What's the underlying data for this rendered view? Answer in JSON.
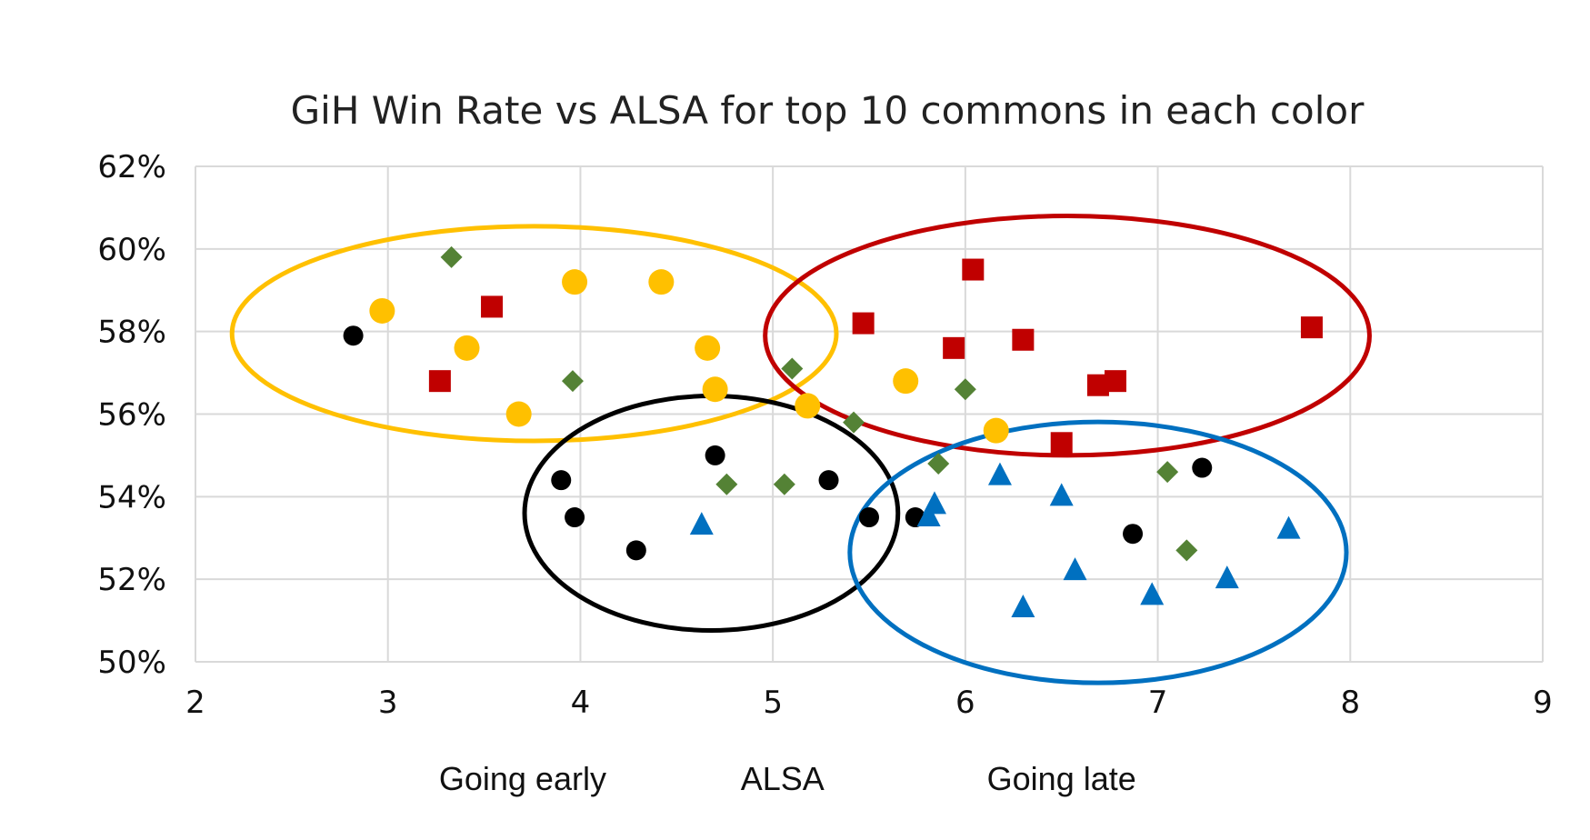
{
  "chart_data": {
    "type": "scatter",
    "title": "GiH Win Rate vs ALSA for top 10 commons in each color",
    "xlim": [
      2,
      9
    ],
    "ylim": [
      50,
      62
    ],
    "x_ticks": [
      2,
      3,
      4,
      5,
      6,
      7,
      8,
      9
    ],
    "y_ticks": [
      50,
      52,
      54,
      56,
      58,
      60,
      62
    ],
    "y_tick_labels": [
      "50%",
      "52%",
      "54%",
      "56%",
      "58%",
      "60%",
      "62%"
    ],
    "grid": true,
    "bottom_labels": [
      {
        "text": "Going early",
        "x": 3.7
      },
      {
        "text": "ALSA",
        "x": 5.05
      },
      {
        "text": "Going late",
        "x": 6.5
      }
    ],
    "series": [
      {
        "marker": "circle",
        "color": "#FFC000",
        "points": [
          [
            2.97,
            58.5
          ],
          [
            3.41,
            57.6
          ],
          [
            3.68,
            56.0
          ],
          [
            3.97,
            59.2
          ],
          [
            4.42,
            59.2
          ],
          [
            4.66,
            57.6
          ],
          [
            4.7,
            56.6
          ],
          [
            5.18,
            56.2
          ],
          [
            5.69,
            56.8
          ],
          [
            6.16,
            55.6
          ]
        ]
      },
      {
        "marker": "square",
        "color": "#C00000",
        "points": [
          [
            3.27,
            56.8
          ],
          [
            3.54,
            58.6
          ],
          [
            5.47,
            58.2
          ],
          [
            5.94,
            57.6
          ],
          [
            6.04,
            59.5
          ],
          [
            6.3,
            57.8
          ],
          [
            6.5,
            55.3
          ],
          [
            6.69,
            56.7
          ],
          [
            6.78,
            56.8
          ],
          [
            7.8,
            58.1
          ]
        ]
      },
      {
        "marker": "circle",
        "color": "#000000",
        "points": [
          [
            2.82,
            57.9
          ],
          [
            3.9,
            54.4
          ],
          [
            3.97,
            53.5
          ],
          [
            4.29,
            52.7
          ],
          [
            4.7,
            55.0
          ],
          [
            5.29,
            54.4
          ],
          [
            5.5,
            53.5
          ],
          [
            5.74,
            53.5
          ],
          [
            6.87,
            53.1
          ],
          [
            7.23,
            54.7
          ]
        ]
      },
      {
        "marker": "diamond",
        "color": "#548235",
        "points": [
          [
            3.33,
            59.8
          ],
          [
            3.96,
            56.8
          ],
          [
            4.76,
            54.3
          ],
          [
            5.06,
            54.3
          ],
          [
            5.1,
            57.1
          ],
          [
            5.42,
            55.8
          ],
          [
            5.86,
            54.8
          ],
          [
            6.0,
            56.6
          ],
          [
            7.05,
            54.6
          ],
          [
            7.15,
            52.7
          ]
        ]
      },
      {
        "marker": "triangle",
        "color": "#0070C0",
        "points": [
          [
            4.63,
            53.3
          ],
          [
            5.81,
            53.5
          ],
          [
            5.84,
            53.8
          ],
          [
            6.18,
            54.5
          ],
          [
            6.3,
            51.3
          ],
          [
            6.5,
            54.0
          ],
          [
            6.57,
            52.2
          ],
          [
            6.97,
            51.6
          ],
          [
            7.36,
            52.0
          ],
          [
            7.68,
            53.2
          ]
        ]
      }
    ],
    "ellipses": [
      {
        "color": "#FFC000",
        "cx": 3.76,
        "cy": 57.95,
        "rx": 1.57,
        "ry": 2.6
      },
      {
        "color": "#C00000",
        "cx": 6.53,
        "cy": 57.9,
        "rx": 1.57,
        "ry": 2.9
      },
      {
        "color": "#000000",
        "cx": 4.68,
        "cy": 53.6,
        "rx": 0.97,
        "ry": 2.84
      },
      {
        "color": "#0070C0",
        "cx": 6.69,
        "cy": 52.65,
        "rx": 1.29,
        "ry": 3.16
      }
    ]
  }
}
